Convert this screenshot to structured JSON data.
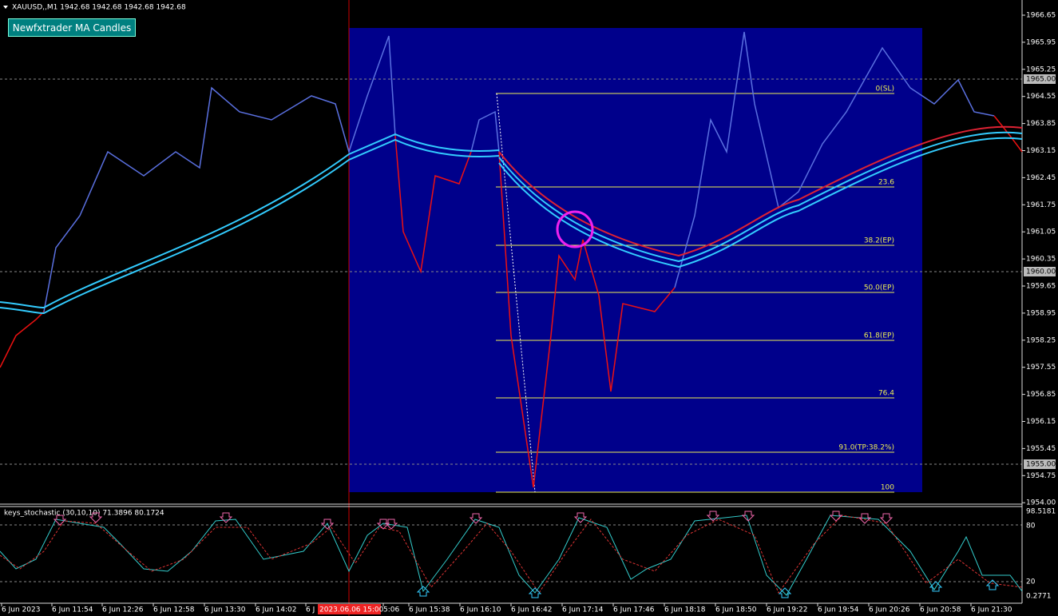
{
  "symbol_header": "XAUUSD,,M1  1942.68 1942.68 1942.68 1942.68",
  "button": "Newfxtrader MA Candles",
  "price_axis": [
    "1966.65",
    "1965.95",
    "1965.25",
    "1964.55",
    "1963.85",
    "1963.15",
    "1962.45",
    "1961.75",
    "1961.05",
    "1960.35",
    "1959.65",
    "1958.95",
    "1958.25",
    "1957.55",
    "1956.85",
    "1956.15",
    "1955.45",
    "1954.75",
    "1954.00"
  ],
  "price_markers": [
    "1965.00",
    "1960.00",
    "1955.00"
  ],
  "fib_levels": [
    "0(SL)",
    "23.6",
    "38.2(EP)",
    "50.0(EP)",
    "61.8(EP)",
    "76.4",
    "91.0(TP:38.2%)",
    "100"
  ],
  "indicator_header": "keys_stochastic (30,10,10) 71.3896 80.1724",
  "indicator_axis": [
    "98.5181",
    "80",
    "20",
    "0.2771"
  ],
  "time_axis": [
    "6 Jun 2023",
    "6 Jun 11:54",
    "6 Jun 12:26",
    "6 Jun 12:58",
    "6 Jun 13:30",
    "6 Jun 14:02",
    "6 J",
    "5:06",
    "6 Jun 15:38",
    "6 Jun 16:10",
    "6 Jun 16:42",
    "6 Jun 17:14",
    "6 Jun 17:46",
    "6 Jun 18:18",
    "6 Jun 18:50",
    "6 Jun 19:22",
    "6 Jun 19:54",
    "6 Jun 20:26",
    "6 Jun 20:58",
    "6 Jun 21:30"
  ],
  "time_marker": "2023.06.06 15:00"
}
